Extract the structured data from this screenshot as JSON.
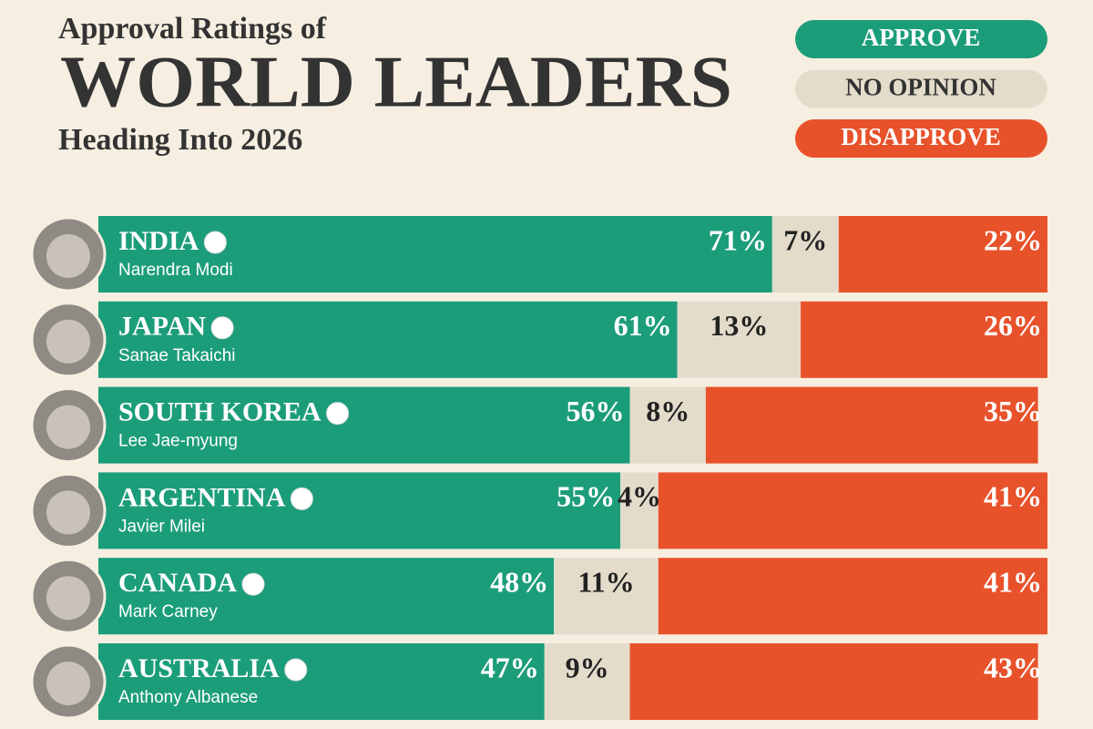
{
  "chart_data": {
    "type": "stacked-bar",
    "kicker": "Approval Ratings of",
    "title": "WORLD LEADERS",
    "subtitle": "Heading Into 2026",
    "categories": [
      "INDIA",
      "JAPAN",
      "SOUTH KOREA",
      "ARGENTINA",
      "CANADA",
      "AUSTRALIA"
    ],
    "leaders": [
      "Narendra Modi",
      "Sanae Takaichi",
      "Lee Jae-myung",
      "Javier Milei",
      "Mark Carney",
      "Anthony Albanese"
    ],
    "xlim": [
      0,
      100
    ],
    "series": [
      {
        "name": "APPROVE",
        "color": "#1c9d7a",
        "values": [
          71,
          61,
          56,
          55,
          48,
          47
        ],
        "value_labels": [
          "71%",
          "61%",
          "56%",
          "55%",
          "48%",
          "47%"
        ]
      },
      {
        "name": "NO OPINION",
        "color": "#e4dccb",
        "values": [
          7,
          13,
          8,
          4,
          11,
          9
        ],
        "value_labels": [
          "7%",
          "13%",
          "8%",
          "4%",
          "11%",
          "9%"
        ]
      },
      {
        "name": "DISAPPROVE",
        "color": "#e8522b",
        "values": [
          22,
          26,
          35,
          41,
          41,
          43
        ],
        "value_labels": [
          "22%",
          "26%",
          "35%",
          "41%",
          "41%",
          "43%"
        ]
      }
    ]
  }
}
